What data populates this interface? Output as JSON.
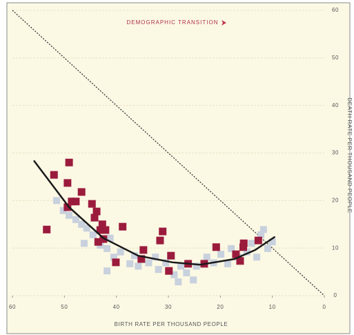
{
  "chart_data": {
    "type": "scatter",
    "title": "DEMOGRAPHIC TRANSITION",
    "x_label": "BIRTH RATE PER THOUSAND PEOPLE",
    "y_label": "DEATH RATE PER THOUSAND PEOPLE",
    "xlim": [
      60,
      0
    ],
    "ylim": [
      0,
      60
    ],
    "xticks": [
      60,
      50,
      40,
      30,
      20,
      10,
      0
    ],
    "yticks": [
      0,
      10,
      20,
      30,
      40,
      50,
      60
    ],
    "grid": true,
    "series": [
      {
        "color": "#c8d1dd",
        "marker": "square",
        "x": [
          51.5,
          50.2,
          49.1,
          47.8,
          46.7,
          45.7,
          46.2,
          44.5,
          43.1,
          41.8,
          41.2,
          40.5,
          39.2,
          41.8,
          37.4,
          36.5,
          35.8,
          33.8,
          32.5,
          31.9,
          30.5,
          28.9,
          28.1,
          27.6,
          26.5,
          25.2,
          24.6,
          22.6,
          21.3,
          19.9,
          18.6,
          17.9,
          16.6,
          14.9,
          14.0,
          12.2,
          11.7,
          10.9,
          10.0,
          13.0
        ],
        "values": [
          20.0,
          17.9,
          16.9,
          16.0,
          15.0,
          14.2,
          11.0,
          12.8,
          10.6,
          9.9,
          12.1,
          8.1,
          9.2,
          5.2,
          6.7,
          8.4,
          6.2,
          6.9,
          8.1,
          5.5,
          6.9,
          4.4,
          2.9,
          6.2,
          4.8,
          3.3,
          6.2,
          8.1,
          6.9,
          8.7,
          6.7,
          9.9,
          8.1,
          9.2,
          11.0,
          12.8,
          13.9,
          9.9,
          11.3,
          8.1
        ]
      },
      {
        "color": "#9b1b3d",
        "marker": "square",
        "x": [
          53.4,
          52.0,
          49.1,
          49.4,
          49.4,
          48.6,
          47.8,
          46.7,
          44.7,
          43.8,
          44.2,
          42.7,
          42.1,
          43.1,
          43.5,
          42.5,
          40.1,
          38.8,
          35.2,
          34.8,
          31.1,
          31.6,
          29.9,
          29.5,
          26.2,
          23.1,
          20.8,
          17.0,
          16.2,
          15.5,
          15.6,
          12.7
        ],
        "values": [
          13.9,
          25.4,
          28.0,
          23.7,
          18.6,
          19.8,
          19.8,
          21.8,
          19.3,
          17.7,
          16.4,
          15.0,
          13.8,
          13.8,
          11.3,
          11.9,
          7.0,
          14.5,
          7.7,
          9.6,
          13.5,
          11.6,
          5.2,
          8.4,
          6.7,
          6.7,
          10.2,
          8.7,
          7.3,
          11.0,
          10.2,
          11.6
        ]
      },
      {
        "color": "#1a1a1a",
        "marker": "line",
        "x": [
          55.8,
          49.1,
          42.5,
          35.8,
          29.2,
          23.9,
          17.3,
          13.3,
          9.6
        ],
        "values": [
          28.3,
          18.6,
          12.1,
          8.4,
          7.0,
          6.5,
          7.7,
          9.6,
          12.3
        ]
      }
    ]
  }
}
